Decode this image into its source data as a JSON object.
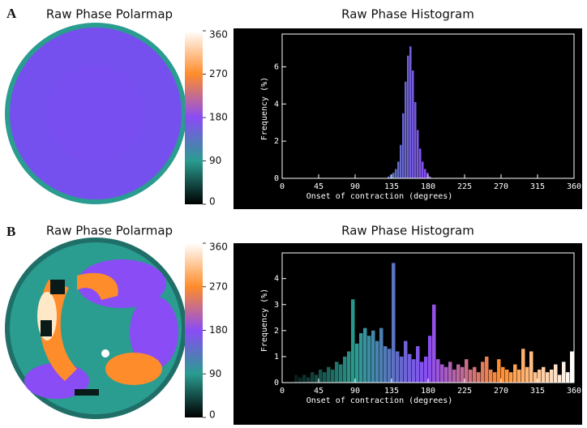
{
  "panel_labels": [
    "A",
    "B"
  ],
  "chart_data": [
    {
      "type": "colormap",
      "title": "Raw Phase Polarmap",
      "clim": [
        0,
        360
      ],
      "cticks": [
        0,
        90,
        180,
        270,
        360
      ],
      "colors": [
        "#000000",
        "#2a9c90",
        "#8a4cf5",
        "#ff8c2a",
        "#ffffff"
      ]
    },
    {
      "type": "histogram",
      "title": "Raw Phase Histogram",
      "x_label": "Onset of contraction (degrees)",
      "y_label": "Frequency (%)",
      "xlim": [
        0,
        360
      ],
      "xticks": [
        0,
        45,
        90,
        135,
        180,
        225,
        270,
        315,
        360
      ],
      "ylim": [
        0,
        7.5
      ],
      "yticks": [
        0,
        2,
        4,
        6
      ],
      "bins": [
        130,
        133,
        136,
        139,
        142,
        145,
        148,
        151,
        154,
        157,
        160,
        163,
        166,
        169,
        172,
        175,
        178,
        181,
        184
      ],
      "counts": [
        0.1,
        0.2,
        0.3,
        0.5,
        0.9,
        1.8,
        3.5,
        5.2,
        6.6,
        7.1,
        5.8,
        4.1,
        2.6,
        1.6,
        0.9,
        0.5,
        0.3,
        0.1
      ]
    },
    {
      "type": "colormap",
      "title": "Raw Phase Polarmap",
      "clim": [
        0,
        360
      ],
      "cticks": [
        0,
        90,
        180,
        270,
        360
      ],
      "colors": [
        "#000000",
        "#2a9c90",
        "#8a4cf5",
        "#ff8c2a",
        "#ffffff"
      ]
    },
    {
      "type": "histogram",
      "title": "Raw Phase Histogram",
      "x_label": "Onset of contraction (degrees)",
      "y_label": "Frequency (%)",
      "xlim": [
        0,
        360
      ],
      "xticks": [
        0,
        45,
        90,
        135,
        180,
        225,
        270,
        315,
        360
      ],
      "ylim": [
        0,
        4.8
      ],
      "yticks": [
        0,
        1,
        2,
        3,
        4
      ],
      "bins": [
        15,
        20,
        25,
        30,
        35,
        40,
        45,
        50,
        55,
        60,
        65,
        70,
        75,
        80,
        85,
        90,
        95,
        100,
        105,
        110,
        115,
        120,
        125,
        130,
        135,
        140,
        145,
        150,
        155,
        160,
        165,
        170,
        175,
        180,
        185,
        190,
        195,
        200,
        205,
        210,
        215,
        220,
        225,
        230,
        235,
        240,
        245,
        250,
        255,
        260,
        265,
        270,
        275,
        280,
        285,
        290,
        295,
        300,
        305,
        310,
        315,
        320,
        325,
        330,
        335,
        340,
        345,
        350,
        355,
        360
      ],
      "counts": [
        0.3,
        0.2,
        0.3,
        0.2,
        0.4,
        0.3,
        0.5,
        0.4,
        0.6,
        0.5,
        0.8,
        0.7,
        1.0,
        1.2,
        3.2,
        1.5,
        1.9,
        2.1,
        1.8,
        2.0,
        1.6,
        2.1,
        1.4,
        1.3,
        4.6,
        1.2,
        1.0,
        1.6,
        1.1,
        0.9,
        1.4,
        0.8,
        1.0,
        1.8,
        3.0,
        0.9,
        0.7,
        0.6,
        0.8,
        0.5,
        0.7,
        0.6,
        0.9,
        0.5,
        0.6,
        0.4,
        0.8,
        1.0,
        0.5,
        0.4,
        0.9,
        0.6,
        0.5,
        0.4,
        0.7,
        0.5,
        1.3,
        0.6,
        1.2,
        0.4,
        0.5,
        0.6,
        0.4,
        0.5,
        0.7,
        0.3,
        0.8,
        0.4,
        1.2
      ]
    }
  ]
}
